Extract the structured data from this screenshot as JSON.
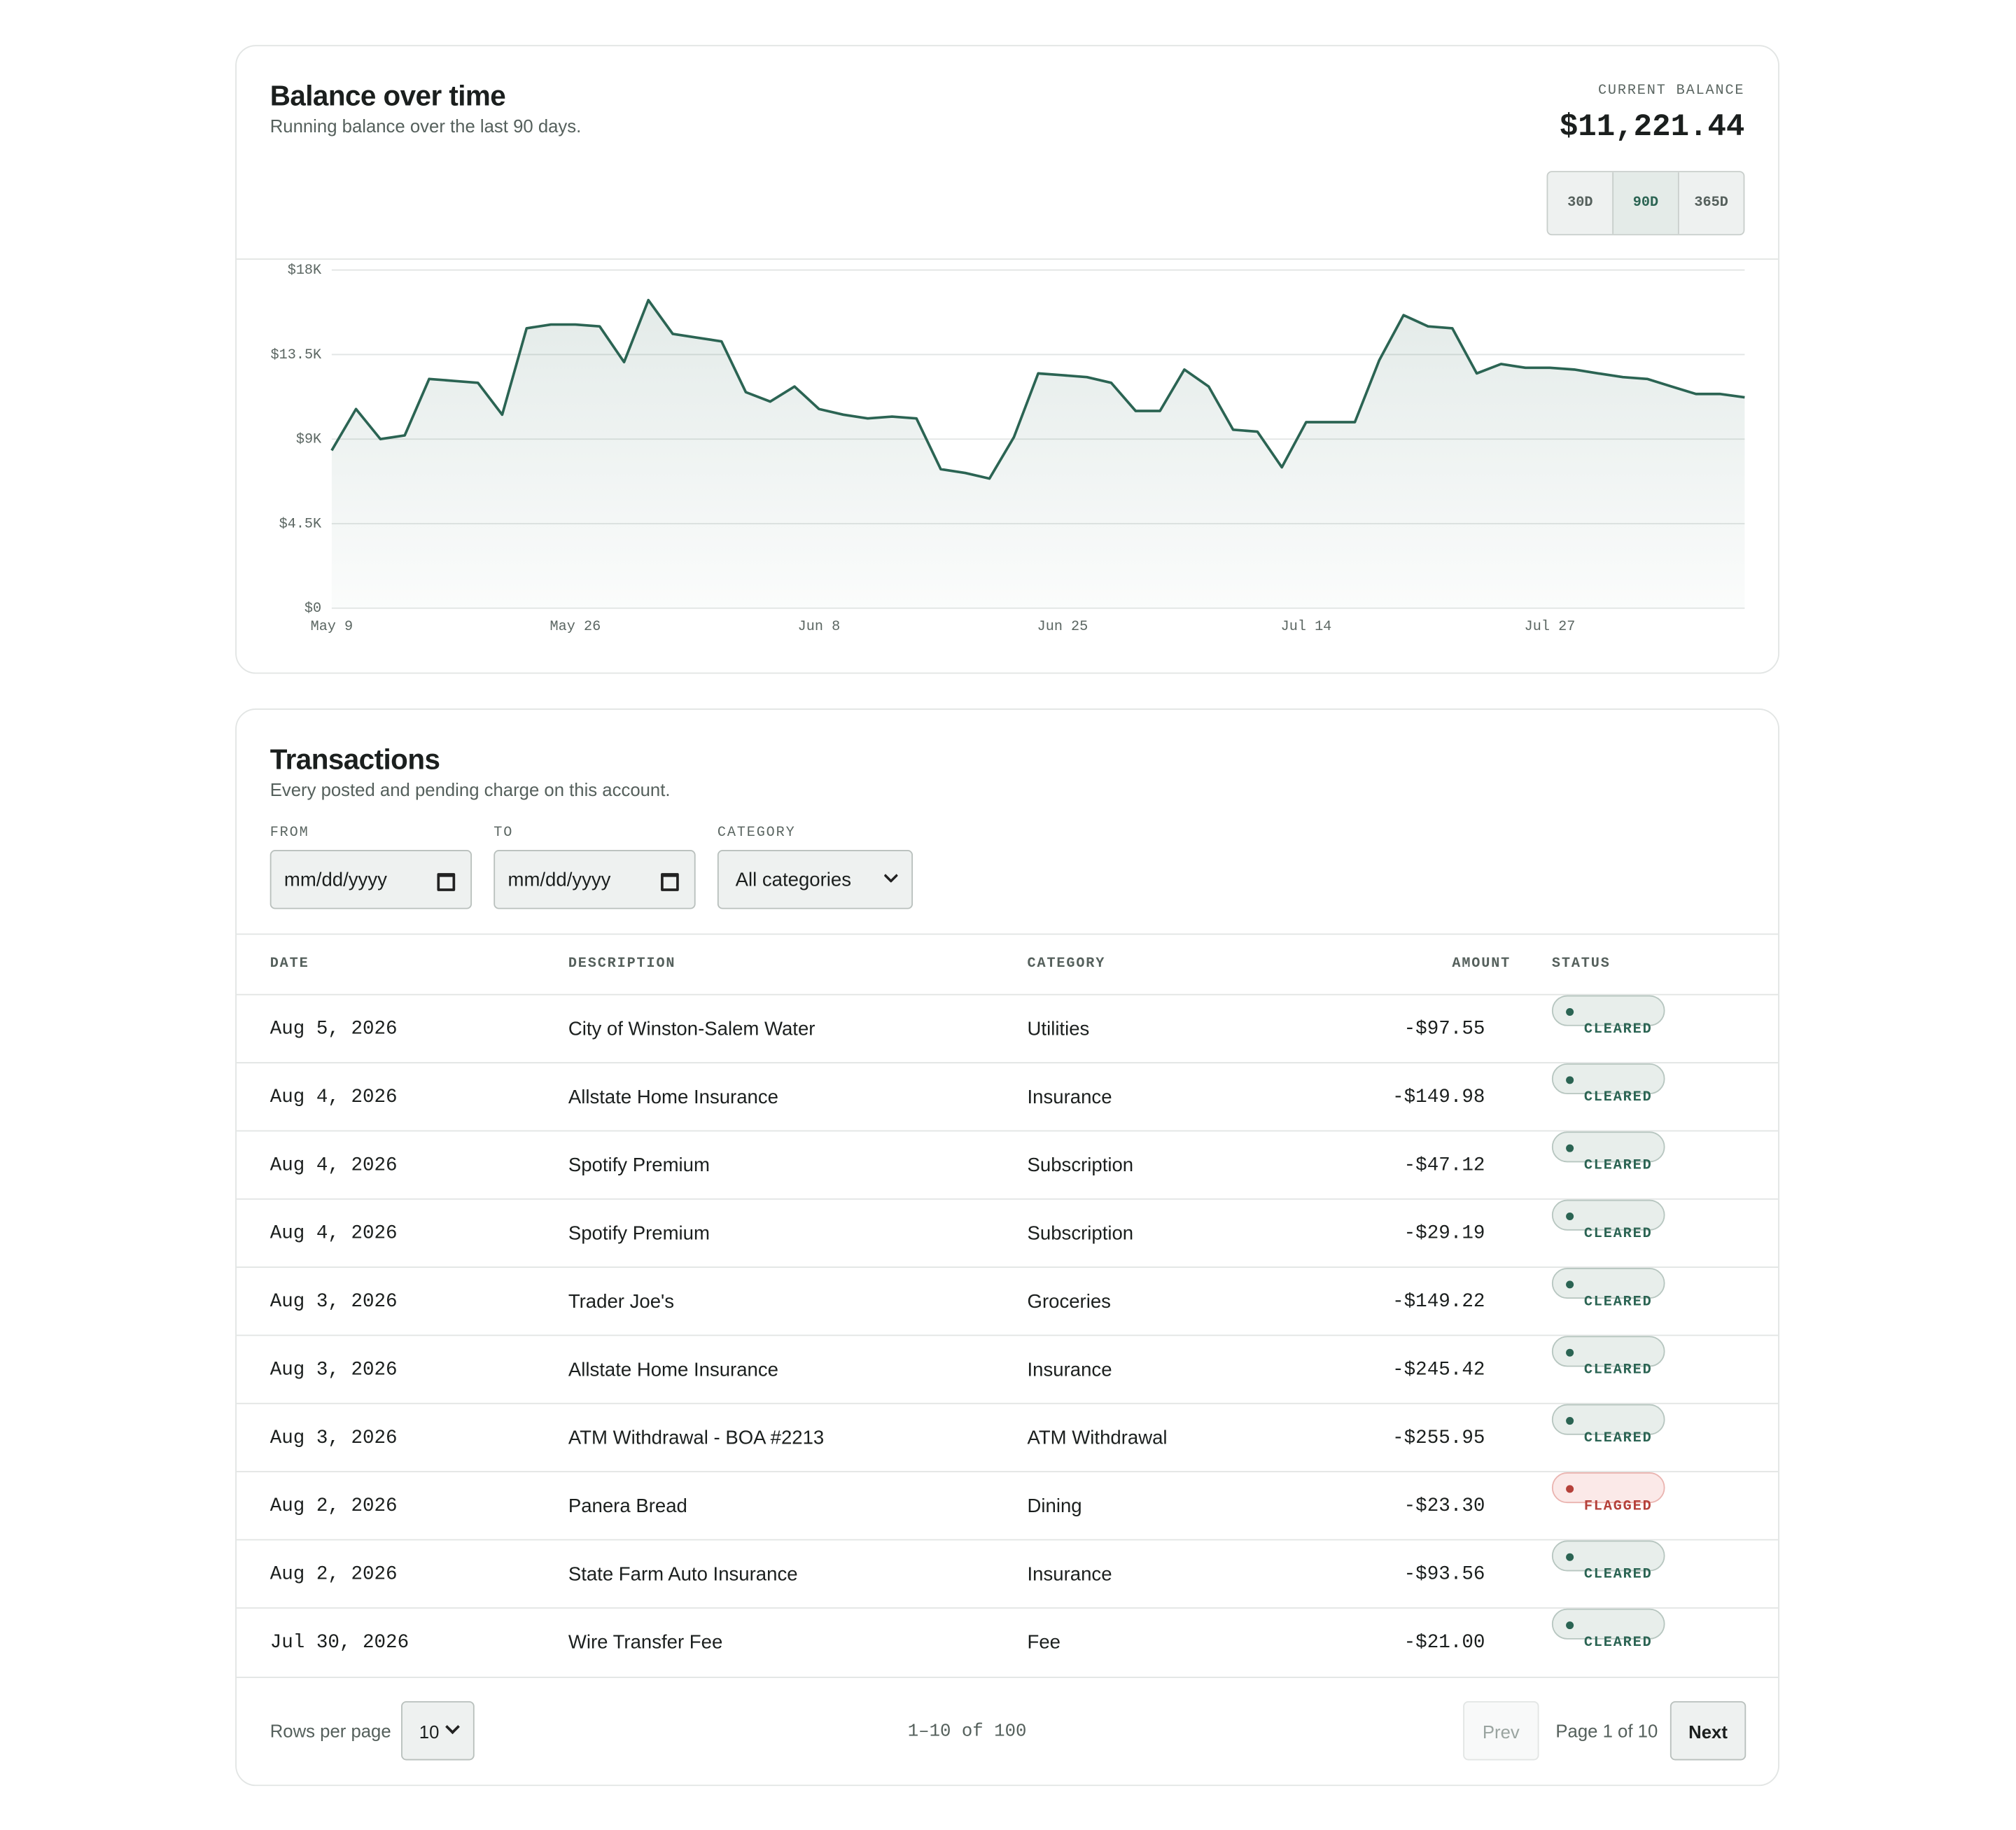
{
  "chart_data": {
    "type": "line",
    "title": "Balance over time",
    "subtitle": "Running balance over the last 90 days.",
    "categories": [
      "May 9",
      null,
      null,
      null,
      null,
      null,
      null,
      null,
      null,
      null,
      "May 26",
      null,
      null,
      null,
      null,
      null,
      null,
      null,
      null,
      null,
      "Jun 8",
      null,
      null,
      null,
      null,
      null,
      null,
      null,
      null,
      null,
      "Jun 25",
      null,
      null,
      null,
      null,
      null,
      null,
      null,
      null,
      null,
      "Jul 14",
      null,
      null,
      null,
      null,
      null,
      null,
      null,
      null,
      null,
      "Jul 27",
      null,
      null,
      null,
      null,
      null,
      null,
      null,
      null
    ],
    "series": [
      {
        "name": "Balance",
        "color": "#2b6453",
        "values": [
          8400,
          10600,
          9000,
          9200,
          12200,
          12100,
          12000,
          10300,
          14900,
          15100,
          15100,
          15000,
          13100,
          16400,
          14600,
          14400,
          14200,
          11500,
          11000,
          11800,
          10600,
          10300,
          10100,
          10200,
          10100,
          7400,
          7200,
          6900,
          9100,
          12500,
          12400,
          12300,
          12000,
          10500,
          10500,
          12700,
          11800,
          9500,
          9400,
          7500,
          9900,
          9900,
          9900,
          13200,
          15600,
          15000,
          14900,
          12500,
          13000,
          12800,
          12800,
          12700,
          12500,
          12300,
          12200,
          11800,
          11400,
          11400,
          11221.44
        ]
      }
    ],
    "ylim": [
      0,
      18000
    ],
    "yticks": [
      {
        "value": 0,
        "label": "$0"
      },
      {
        "value": 4500,
        "label": "$4.5K"
      },
      {
        "value": 9000,
        "label": "$9K"
      },
      {
        "value": 13500,
        "label": "$13.5K"
      },
      {
        "value": 18000,
        "label": "$18K"
      }
    ],
    "grid": true
  },
  "balance": {
    "label": "CURRENT BALANCE",
    "value": "$11,221.44"
  },
  "ranges": [
    "30D",
    "90D",
    "365D"
  ],
  "transactions": {
    "title": "Transactions",
    "subtitle": "Every posted and pending charge on this account.",
    "filters": {
      "from_label": "FROM",
      "from_value": "mm/dd/yyyy",
      "to_label": "TO",
      "to_value": "mm/dd/yyyy",
      "category_label": "CATEGORY",
      "category_value": "All categories"
    },
    "columns": [
      "DATE",
      "DESCRIPTION",
      "CATEGORY",
      "AMOUNT",
      "STATUS"
    ],
    "rows": [
      [
        "Aug 5, 2026",
        "City of Winston-Salem Water",
        "Utilities",
        "-$97.55",
        "CLEARED"
      ],
      [
        "Aug 4, 2026",
        "Allstate Home Insurance",
        "Insurance",
        "-$149.98",
        "CLEARED"
      ],
      [
        "Aug 4, 2026",
        "Spotify Premium",
        "Subscription",
        "-$47.12",
        "CLEARED"
      ],
      [
        "Aug 4, 2026",
        "Spotify Premium",
        "Subscription",
        "-$29.19",
        "CLEARED"
      ],
      [
        "Aug 3, 2026",
        "Trader Joe's",
        "Groceries",
        "-$149.22",
        "CLEARED"
      ],
      [
        "Aug 3, 2026",
        "Allstate Home Insurance",
        "Insurance",
        "-$245.42",
        "CLEARED"
      ],
      [
        "Aug 3, 2026",
        "ATM Withdrawal - BOA #2213",
        "ATM Withdrawal",
        "-$255.95",
        "CLEARED"
      ],
      [
        "Aug 2, 2026",
        "Panera Bread",
        "Dining",
        "-$23.30",
        "FLAGGED"
      ],
      [
        "Aug 2, 2026",
        "State Farm Auto Insurance",
        "Insurance",
        "-$93.56",
        "CLEARED"
      ],
      [
        "Jul 30, 2026",
        "Wire Transfer Fee",
        "Fee",
        "-$21.00",
        "CLEARED"
      ]
    ],
    "footer": {
      "rows_label": "Rows per page",
      "rows_value": "10",
      "range": "1–10 of 100",
      "prev": "Prev",
      "page": "Page 1 of 10",
      "next": "Next"
    }
  }
}
